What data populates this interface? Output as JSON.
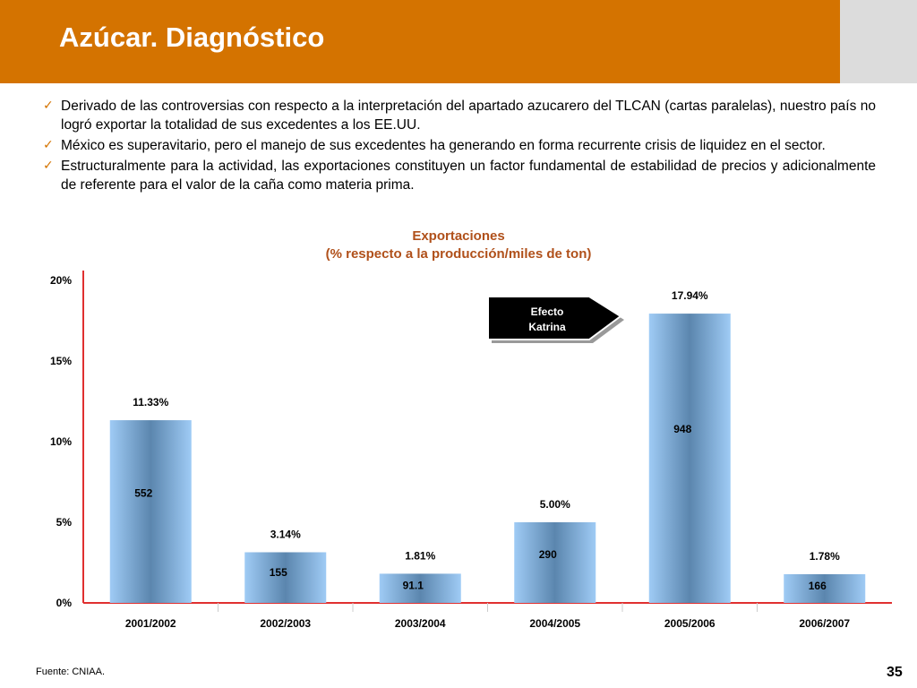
{
  "slide": {
    "title": "Azúcar. Diagnóstico",
    "bullets": [
      "Derivado de las controversias con respecto a la interpretación del apartado azucarero del TLCAN (cartas paralelas), nuestro país no logró exportar la totalidad de sus excedentes a los EE.UU.",
      " México es superavitario, pero el manejo de sus excedentes ha generando en forma recurrente crisis de liquidez en el sector.",
      "Estructuralmente para la actividad, las exportaciones constituyen un  factor fundamental de estabilidad de precios y adicionalmente de referente para el valor de la caña como  materia prima."
    ],
    "bullet_icon": "checkmark-icon",
    "source": "Fuente:  CNIAA.",
    "page_number": "35",
    "colors": {
      "header": "#D47300",
      "accent_text": "#B0501A",
      "axis": "#E03030",
      "bar": "#8FBDEB",
      "bar_dark": "#5B86AE"
    }
  },
  "chart_data": {
    "type": "bar",
    "title_line1": "Exportaciones",
    "title_line2": "(% respecto a la producción/miles de ton)",
    "categories": [
      "2001/2002",
      "2002/2003",
      "2003/2004",
      "2004/2005",
      "2005/2006",
      "2006/2007"
    ],
    "values": [
      11.33,
      3.14,
      1.81,
      5.0,
      17.94,
      1.78
    ],
    "value_labels": [
      "11.33%",
      "3.14%",
      "1.81%",
      "5.00%",
      "17.94%",
      "1.78%"
    ],
    "inner_labels": [
      "552",
      "155",
      "91.1",
      "290",
      "948",
      "166"
    ],
    "y_ticks": [
      "0%",
      "5%",
      "10%",
      "15%",
      "20%"
    ],
    "ylim": [
      0,
      20
    ],
    "annotation": {
      "line1": "Efecto",
      "line2": "Katrina"
    },
    "grid": false
  }
}
